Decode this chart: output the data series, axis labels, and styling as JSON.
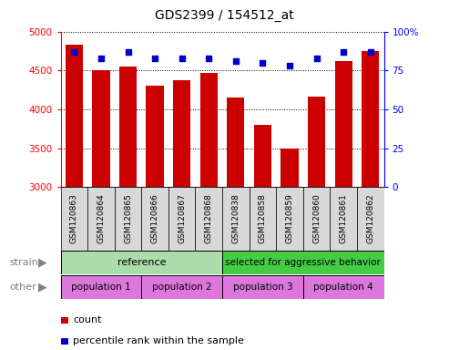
{
  "title": "GDS2399 / 154512_at",
  "samples": [
    "GSM120863",
    "GSM120864",
    "GSM120865",
    "GSM120866",
    "GSM120867",
    "GSM120868",
    "GSM120838",
    "GSM120858",
    "GSM120859",
    "GSM120860",
    "GSM120861",
    "GSM120862"
  ],
  "counts": [
    4830,
    4500,
    4550,
    4300,
    4380,
    4470,
    4150,
    3800,
    3500,
    4160,
    4620,
    4750
  ],
  "percentiles": [
    87,
    83,
    87,
    83,
    83,
    83,
    81,
    80,
    78,
    83,
    87,
    87
  ],
  "ymin": 3000,
  "ymax": 5000,
  "yticks": [
    3000,
    3500,
    4000,
    4500,
    5000
  ],
  "right_yticks": [
    0,
    25,
    50,
    75,
    100
  ],
  "bar_color": "#cc0000",
  "dot_color": "#0000cc",
  "strain_ref_color": "#aaddaa",
  "strain_agg_color": "#44cc44",
  "other_color": "#dd77dd",
  "strain_ref_text": "reference",
  "strain_agg_text": "selected for aggressive behavior",
  "pop_texts": [
    "population 1",
    "population 2",
    "population 3",
    "population 4"
  ],
  "pop_counts": [
    3,
    3,
    3,
    3
  ],
  "ref_count": 6,
  "legend_count": "count",
  "legend_pct": "percentile rank within the sample",
  "strain_label": "strain",
  "other_label": "other"
}
